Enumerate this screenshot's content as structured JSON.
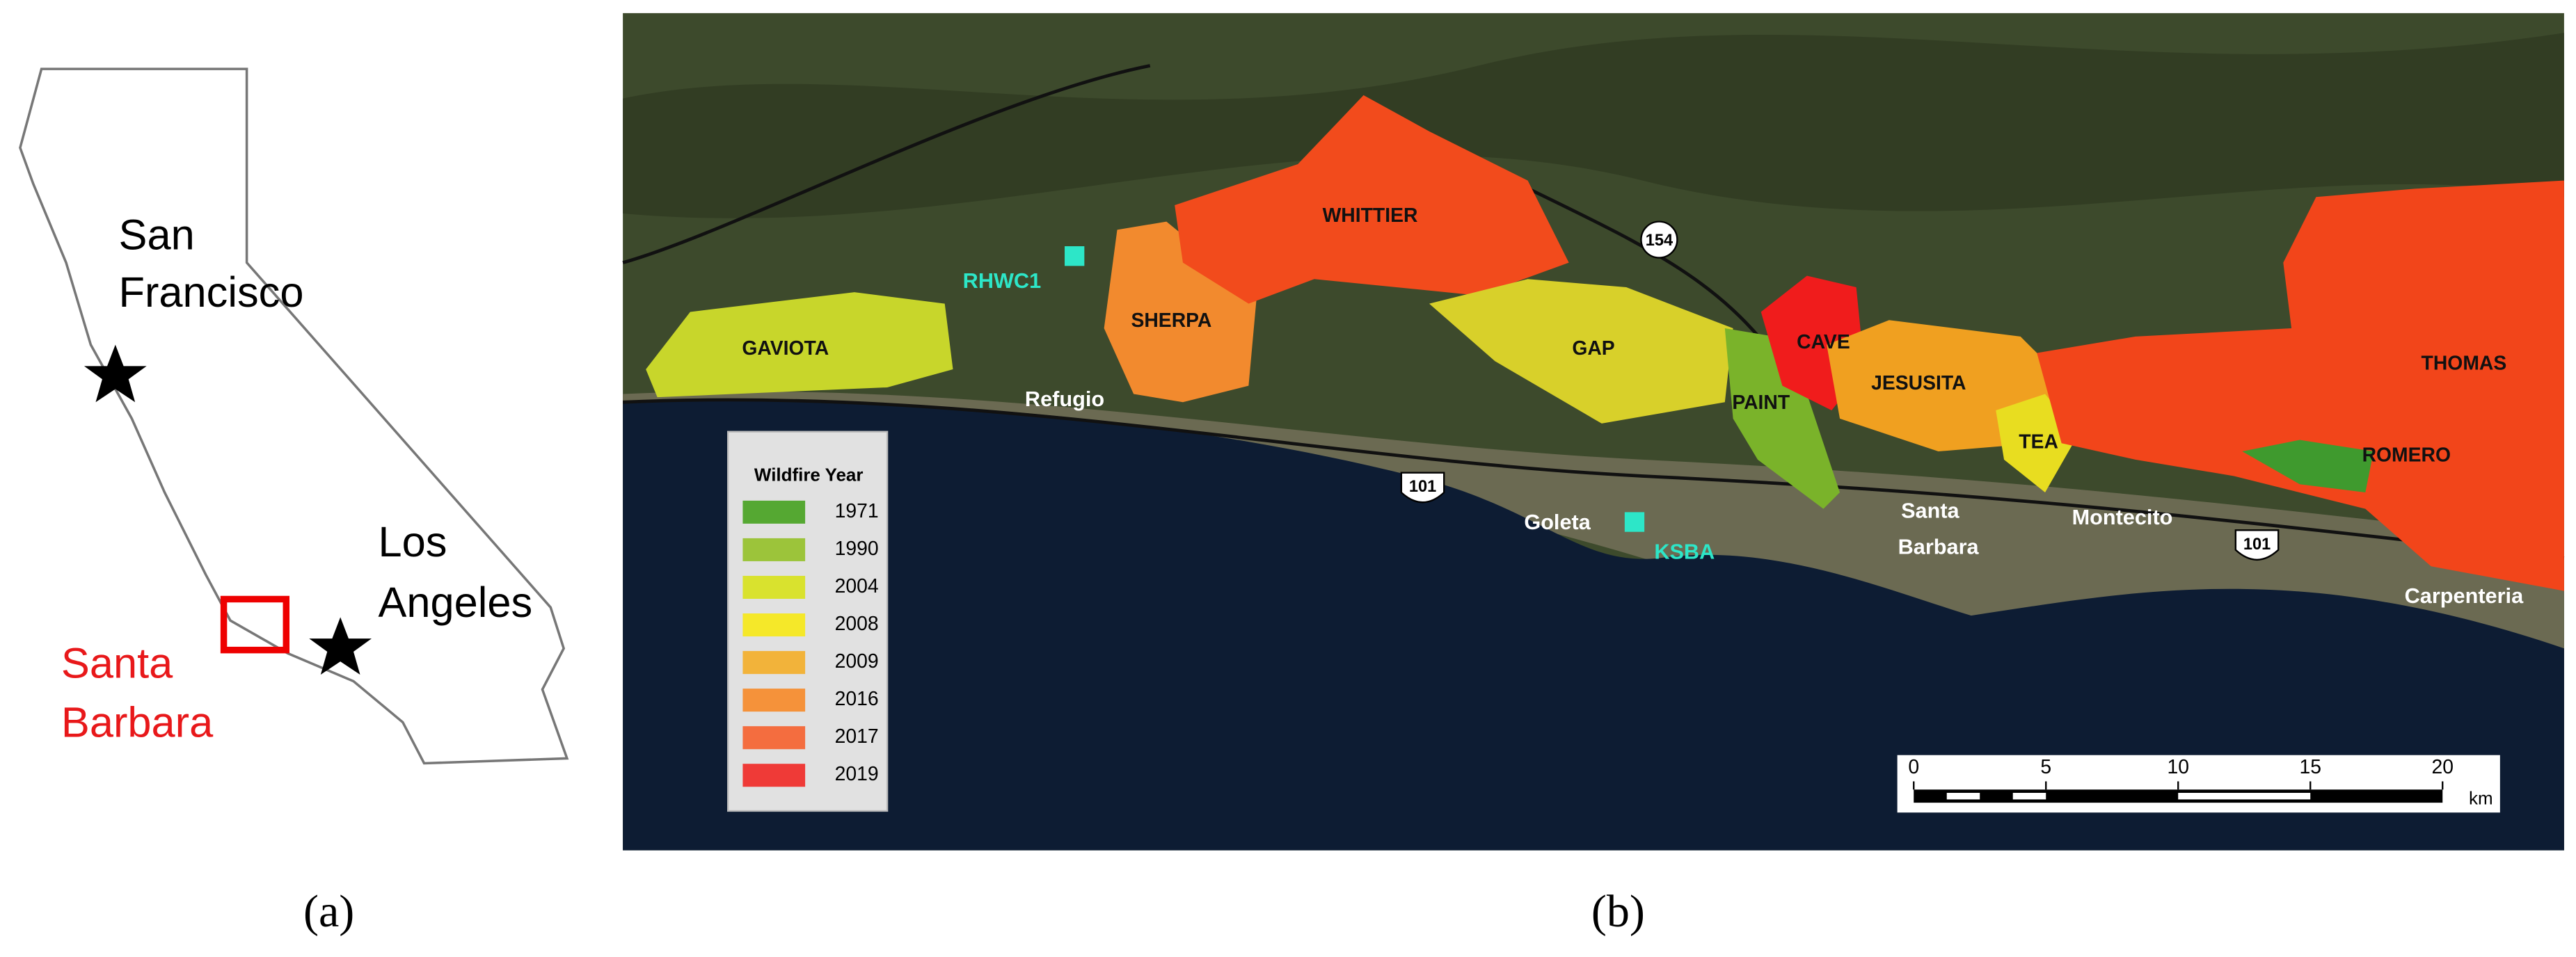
{
  "panel_a": {
    "caption": "(a)",
    "cities": [
      "San",
      "Francisco",
      "Los",
      "Angeles"
    ],
    "region": [
      "Santa",
      "Barbara"
    ]
  },
  "panel_b": {
    "caption": "(b)",
    "fires": [
      "GAVIOTA",
      "SHERPA",
      "WHITTIER",
      "GAP",
      "CAVE",
      "PAINT",
      "JESUSITA",
      "TEA",
      "THOMAS",
      "ROMERO"
    ],
    "places": [
      "Refugio",
      "Goleta",
      "Santa",
      "Barbara",
      "Montecito",
      "Carpenteria"
    ],
    "stations": [
      "RHWC1",
      "KSBA"
    ],
    "highways": [
      "154",
      "101",
      "101"
    ],
    "legend": {
      "title": "Wildfire Year",
      "years": [
        1971,
        1990,
        2004,
        2008,
        2009,
        2016,
        2017,
        2019
      ],
      "colors": [
        "#55a832",
        "#9cc43a",
        "#d9e22e",
        "#f5e829",
        "#f2b33a",
        "#f5923a",
        "#f46d3f",
        "#ef3a37"
      ]
    },
    "scale_bar": {
      "ticks": [
        0,
        5,
        10,
        15,
        20
      ],
      "unit": "km"
    }
  }
}
